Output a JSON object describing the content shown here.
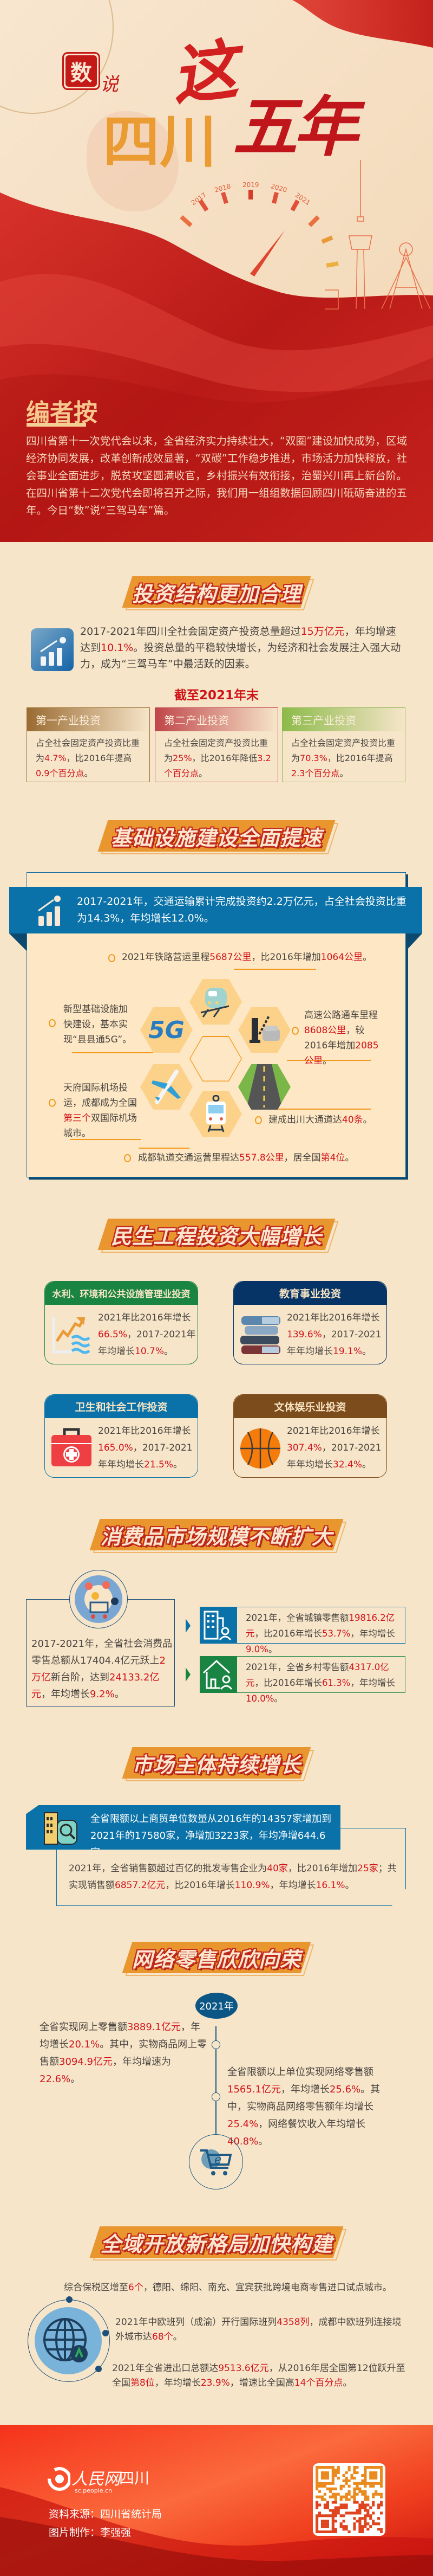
{
  "hero": {
    "stamp": "数",
    "stamp_suffix": "说",
    "title_province": "四川",
    "title_this": "这",
    "title_years": "五年",
    "gauge_years": [
      "2017",
      "2018",
      "2019",
      "2020",
      "2021"
    ]
  },
  "editor_note": {
    "heading": "编者按",
    "body": "四川省第十一次党代会以来，全省经济实力持续壮大，“双圈”建设加快成势，区域经济协同发展，改革创新成效显著，“双碳”工作稳步推进，市场活力加快释放，社会事业全面进步，脱贫攻坚圆满收官，乡村振兴有效衔接，治蜀兴川再上新台阶。在四川省第十二次党代会即将召开之际，我们用一组组数据回顾四川砥砺奋进的五年。今日“数”说“三驾马车”篇。"
  },
  "investment": {
    "title": "投资结构更加合理",
    "intro": [
      "2017-2021年四川全社会固定资产投资总量超过",
      "15万亿元",
      "，年均增速达到",
      "10.1%",
      "。投资总量的平稳较快增长，为经济和社会发展注入强大动力，成为“三驾马车”中最活跃的因素。"
    ],
    "subheading": "截至2021年末",
    "cards": [
      {
        "label": "第一产业投资",
        "text": [
          "占全社会固定资产投资比重为",
          "4.7%",
          "，比2016年提高",
          "0.9个百分点",
          "。"
        ]
      },
      {
        "label": "第二产业投资",
        "text": [
          "占全社会固定资产投资比重为",
          "25%",
          "，比2016年降低",
          "3.2个百分点",
          "。"
        ]
      },
      {
        "label": "第三产业投资",
        "text": [
          "占全社会固定资产投资比重为",
          "70.3%",
          "，比2016年提高",
          "2.3个百分点",
          "。"
        ]
      }
    ]
  },
  "infrastructure": {
    "title": "基础设施建设全面提速",
    "banner": "2017-2021年，交通运输累计完成投资约2.2万亿元，占全社会投资比重为14.3%，年均增长12.0%。",
    "rail": [
      "2021年铁路营运里程",
      "5687公里",
      "，比2016年增加",
      "1064公里",
      "。"
    ],
    "fiveg": [
      "新型基础设施加快建设，基本实现“县县通5G”。"
    ],
    "highway": [
      "高速公路通车里程",
      "8608公里",
      "，较2016年增加",
      "2085公里",
      "。"
    ],
    "airport": [
      "天府国际机场投运，成都成为全国",
      "第三个",
      "双国际机场城市。"
    ],
    "corridors": [
      "建成出川大通道达",
      "40条",
      "。"
    ],
    "metro": [
      "成都轨道交通运营里程达",
      "557.8公里",
      "，居全国",
      "第4位",
      "。"
    ],
    "fiveg_icon_label": "5G"
  },
  "livelihood": {
    "title": "民生工程投资大幅增长",
    "cards": [
      {
        "label": "水利、环境和公共设施管理业投资",
        "color": "#1a8443",
        "text": [
          "2021年比2016年增长",
          "66.5%",
          "，2017-2021年年均增长",
          "10.7%",
          "。"
        ]
      },
      {
        "label": "教育事业投资",
        "color": "#063466",
        "text": [
          "2021年比2016年增长",
          "139.6%",
          "，2017-2021年年均增长",
          "19.1%",
          "。"
        ]
      },
      {
        "label": "卫生和社会工作投资",
        "color": "#0a72a8",
        "text": [
          "2021年比2016年增长",
          "165.0%",
          "，2017-2021年年均增长",
          "21.5%",
          "。"
        ]
      },
      {
        "label": "文体娱乐业投资",
        "color": "#7d4c1c",
        "text": [
          "2021年比2016年增长",
          "307.4%",
          "，2017-2021年年均增长",
          "32.4%",
          "。"
        ]
      }
    ]
  },
  "consumption": {
    "title": "消费品市场规模不断扩大",
    "main": [
      "2017-2021年，全省社会消费品零售总额从17404.4亿元跃上",
      "2万亿",
      "新台阶，达到",
      "24133.2亿元",
      "，年均增长",
      "9.2%",
      "。"
    ],
    "urban": [
      "2021年，全省城镇零售额",
      "19816.2亿元",
      "，比2016年增长",
      "53.7%",
      "，年均增长",
      "9.0%",
      "。"
    ],
    "rural": [
      "2021年，全省乡村零售额",
      "4317.0亿元",
      "，比2016年增长",
      "61.3%",
      "，年均增长",
      "10.0%",
      "。"
    ]
  },
  "market": {
    "title": "市场主体持续增长",
    "banner": "全省限额以上商贸单位数量从2016年的14357家增加到2021年的17580家，净增加3223家，年均净增644.6家。",
    "detail": [
      "2021年，全省销售额超过百亿的批发零售企业为",
      "40家",
      "，比2016年增加",
      "25家",
      "；共实现销售额",
      "6857.2亿元",
      "，比2016年增长",
      "110.9%",
      "，年均增长",
      "16.1%",
      "。"
    ]
  },
  "online": {
    "title": "网络零售欣欣向荣",
    "year": "2021年",
    "left": [
      "全省实现网上零售额",
      "3889.1亿元",
      "，年均增长",
      "20.1%",
      "。其中，实物商品网上零售额",
      "3094.9亿元",
      "，年均增速为",
      "22.6%",
      "。"
    ],
    "right": [
      "全省限额以上单位实现网络零售额",
      "1565.1亿元",
      "，年均增长",
      "25.6%",
      "。其中，实物商品网络零售额年均增长",
      "25.4%",
      "，网络餐饮收入年均增长",
      "40.8%",
      "。"
    ]
  },
  "opening": {
    "title": "全域开放新格局加快构建",
    "bonded": [
      "综合保税区增至",
      "6个",
      "，德阳、绵阳、南充、宜宾获批跨境电商零售进口试点城市。"
    ],
    "rail": [
      "2021年中欧班列（成渝）开行国际班列",
      "4358列",
      "，成都中欧班列连接境外城市达",
      "68个",
      "。"
    ],
    "trade": [
      "2021年全省进出口总额达",
      "9513.6亿元",
      "，从2016年居全国第12位跃升至全国",
      "第8位",
      "，年均增长",
      "23.9%",
      "，增速比全国高",
      "14个百分点",
      "。"
    ]
  },
  "footer": {
    "logo_name": "人民网",
    "logo_region": "四川",
    "logo_url": "sc.people.cn",
    "source_label": "资料来源：",
    "source": "四川省统计局",
    "maker_label": "图片制作：",
    "maker": "李强强"
  },
  "colors": {
    "background": "#f6e5c9",
    "banner_orange": "#e9962f",
    "highlight_red": "#d3121b",
    "blue": "#0a72a8",
    "navy": "#063466",
    "green": "#1a8443",
    "brown": "#7d4c1c"
  }
}
